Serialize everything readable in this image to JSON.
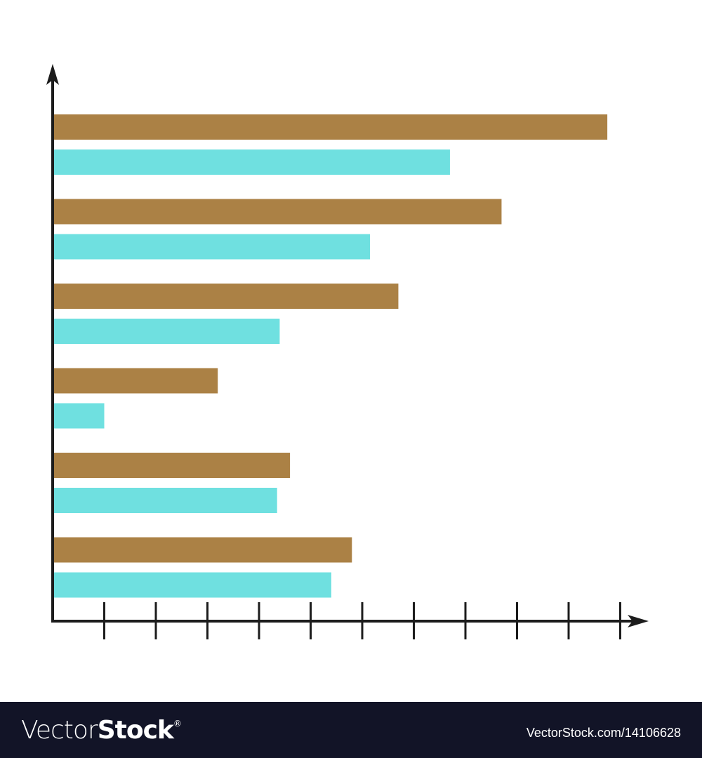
{
  "chart_data": {
    "type": "bar",
    "orientation": "horizontal",
    "title": "",
    "xlabel": "",
    "ylabel": "",
    "categories": [
      "",
      "",
      "",
      "",
      "",
      ""
    ],
    "series": [
      {
        "color": "#ab8145",
        "values": [
          10.75,
          8.7,
          6.7,
          3.2,
          4.6,
          5.8
        ]
      },
      {
        "color": "#6fe0e0",
        "values": [
          7.7,
          6.15,
          4.4,
          1.0,
          4.35,
          5.4
        ]
      }
    ],
    "xlim": [
      0,
      11.5
    ],
    "x_ticks": [
      1,
      2,
      3,
      4,
      5,
      6,
      7,
      8,
      9,
      10,
      11
    ],
    "tick_labels": false,
    "grid": false,
    "legend": "none",
    "axis_color": "#1c1c1c"
  },
  "watermark": {
    "logo_light": "Vector",
    "logo_bold": "Stock",
    "logo_mark": "®",
    "stock_id": "VectorStock.com/14106628"
  }
}
